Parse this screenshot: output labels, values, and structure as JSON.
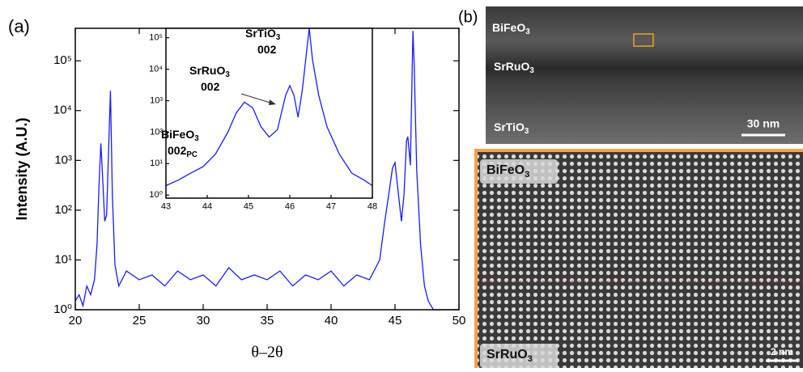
{
  "figure_labels": {
    "a": "(a)",
    "b": "(b)"
  },
  "chart_data": [
    {
      "type": "line",
      "x_label": "θ–2θ",
      "y_label": "Intensity (A.U.)",
      "log_y": true,
      "color": "#1a1aff",
      "xlim": [
        20,
        50
      ],
      "xticks": [
        20,
        25,
        30,
        35,
        40,
        45,
        50
      ],
      "ylim": [
        1,
        450000
      ],
      "yticks": [
        {
          "value": 1,
          "label": "10⁰"
        },
        {
          "value": 10,
          "label": "10¹"
        },
        {
          "value": 100,
          "label": "10²"
        },
        {
          "value": 1000,
          "label": "10³"
        },
        {
          "value": 10000,
          "label": "10⁴"
        },
        {
          "value": 100000,
          "label": "10⁵"
        }
      ],
      "x": [
        20,
        20.3,
        20.6,
        20.9,
        21.2,
        21.5,
        21.7,
        21.85,
        22.0,
        22.15,
        22.3,
        22.45,
        22.6,
        22.75,
        22.9,
        23.1,
        23.4,
        24,
        25,
        26,
        27,
        28,
        29,
        30,
        31,
        32,
        33,
        34,
        35,
        36,
        37,
        38,
        39,
        40,
        41,
        42,
        43,
        43.8,
        44.2,
        44.5,
        44.8,
        45.0,
        45.2,
        45.5,
        45.7,
        45.9,
        46.0,
        46.2,
        46.4,
        46.5,
        46.7,
        47.0,
        47.3,
        47.6,
        48,
        49,
        50
      ],
      "values": [
        1.5,
        2,
        1.2,
        3,
        2,
        4,
        20,
        300,
        2200,
        400,
        60,
        80,
        1500,
        25000,
        200,
        8,
        3,
        6,
        4,
        5,
        3,
        6,
        4,
        5,
        3,
        7,
        4,
        5,
        4,
        6,
        3,
        5,
        4,
        6,
        3,
        5,
        4,
        10,
        60,
        200,
        700,
        900,
        300,
        60,
        200,
        2500,
        3000,
        800,
        400000,
        80000,
        600,
        20,
        3,
        1.5,
        1,
        1,
        1
      ]
    },
    {
      "type": "line",
      "log_y": true,
      "color": "#1a1aff",
      "xlim": [
        43,
        48
      ],
      "xticks": [
        43,
        44,
        45,
        46,
        47,
        48
      ],
      "ylim": [
        0.8,
        200000
      ],
      "yticks": [
        {
          "value": 1,
          "label": "10⁰"
        },
        {
          "value": 10,
          "label": "10¹"
        },
        {
          "value": 100,
          "label": "10²"
        },
        {
          "value": 1000,
          "label": "10³"
        },
        {
          "value": 10000,
          "label": "10⁴"
        },
        {
          "value": 100000,
          "label": "10⁵"
        }
      ],
      "x": [
        43,
        43.3,
        43.6,
        43.9,
        44.2,
        44.5,
        44.7,
        44.9,
        45.1,
        45.3,
        45.5,
        45.7,
        45.9,
        46.0,
        46.1,
        46.2,
        46.3,
        46.4,
        46.47,
        46.55,
        46.7,
        46.9,
        47.2,
        47.5,
        47.8,
        48
      ],
      "values": [
        2,
        3,
        5,
        8,
        20,
        100,
        400,
        900,
        600,
        150,
        70,
        120,
        1500,
        3000,
        1500,
        300,
        2000,
        30000,
        200000,
        20000,
        1500,
        150,
        20,
        5,
        3,
        2
      ],
      "annotations": [
        {
          "lines": [
            {
              "text": "BiFeO",
              "sub": "3"
            },
            {
              "text": "002",
              "sub": "PC"
            }
          ]
        },
        {
          "lines": [
            {
              "text": "SrRuO",
              "sub": "3"
            },
            {
              "text": "002"
            }
          ]
        },
        {
          "lines": [
            {
              "text": "SrTiO",
              "sub": "3"
            },
            {
              "text": "002"
            }
          ]
        }
      ]
    }
  ],
  "tem": {
    "top": {
      "layers": [
        {
          "text": "BiFeO",
          "sub": "3"
        },
        {
          "text": "SrRuO",
          "sub": "3"
        },
        {
          "text": "SrTiO",
          "sub": "3"
        }
      ],
      "scale_bar": "30 nm"
    },
    "bottom": {
      "layers": [
        {
          "text": "BiFeO",
          "sub": "3"
        },
        {
          "text": "SrRuO",
          "sub": "3"
        }
      ],
      "scale_bar": "2 nm"
    }
  }
}
